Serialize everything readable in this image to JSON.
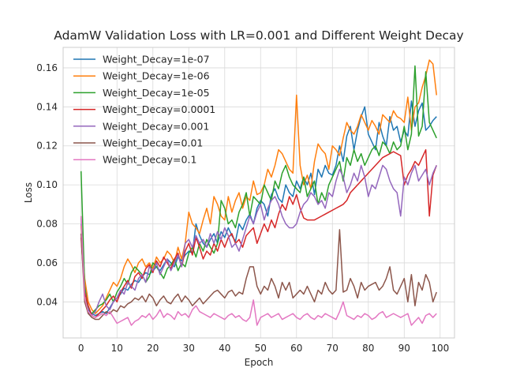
{
  "chart_data": {
    "type": "line",
    "title": "AdamW Validation Loss with LR=0.001 and Different Weight Decay",
    "xlabel": "Epoch",
    "ylabel": "Loss",
    "xlim": [
      -5,
      104
    ],
    "ylim": [
      0.0215,
      0.1705
    ],
    "xticks": [
      0,
      10,
      20,
      30,
      40,
      50,
      60,
      70,
      80,
      90,
      100
    ],
    "yticks": [
      0.04,
      0.06,
      0.08,
      0.1,
      0.12,
      0.14,
      0.16
    ],
    "grid": true,
    "legend_position": "upper-left",
    "x": [
      0,
      1,
      2,
      3,
      4,
      5,
      6,
      7,
      8,
      9,
      10,
      11,
      12,
      13,
      14,
      15,
      16,
      17,
      18,
      19,
      20,
      21,
      22,
      23,
      24,
      25,
      26,
      27,
      28,
      29,
      30,
      31,
      32,
      33,
      34,
      35,
      36,
      37,
      38,
      39,
      40,
      41,
      42,
      43,
      44,
      45,
      46,
      47,
      48,
      49,
      50,
      51,
      52,
      53,
      54,
      55,
      56,
      57,
      58,
      59,
      60,
      61,
      62,
      63,
      64,
      65,
      66,
      67,
      68,
      69,
      70,
      71,
      72,
      73,
      74,
      75,
      76,
      77,
      78,
      79,
      80,
      81,
      82,
      83,
      84,
      85,
      86,
      87,
      88,
      89,
      90,
      91,
      92,
      93,
      94,
      95,
      96,
      97,
      98,
      99
    ],
    "series": [
      {
        "name": "Weight_Decay=1e-07",
        "color": "#1f77b4",
        "values": [
          0.08,
          0.05,
          0.036,
          0.034,
          0.033,
          0.034,
          0.035,
          0.034,
          0.037,
          0.04,
          0.042,
          0.044,
          0.047,
          0.046,
          0.049,
          0.051,
          0.05,
          0.053,
          0.055,
          0.054,
          0.056,
          0.058,
          0.056,
          0.059,
          0.062,
          0.06,
          0.058,
          0.063,
          0.061,
          0.064,
          0.066,
          0.065,
          0.08,
          0.074,
          0.07,
          0.068,
          0.072,
          0.075,
          0.07,
          0.076,
          0.073,
          0.078,
          0.074,
          0.071,
          0.08,
          0.077,
          0.082,
          0.085,
          0.08,
          0.088,
          0.092,
          0.09,
          0.084,
          0.095,
          0.098,
          0.093,
          0.091,
          0.1,
          0.096,
          0.094,
          0.102,
          0.098,
          0.104,
          0.1,
          0.106,
          0.095,
          0.108,
          0.104,
          0.11,
          0.106,
          0.105,
          0.11,
          0.12,
          0.112,
          0.125,
          0.13,
          0.118,
          0.128,
          0.135,
          0.14,
          0.126,
          0.122,
          0.118,
          0.132,
          0.125,
          0.12,
          0.135,
          0.128,
          0.13,
          0.122,
          0.128,
          0.125,
          0.143,
          0.13,
          0.138,
          0.142,
          0.128,
          0.13,
          0.133,
          0.135
        ]
      },
      {
        "name": "Weight_Decay=1e-06",
        "color": "#ff7f0e",
        "values": [
          0.079,
          0.052,
          0.04,
          0.036,
          0.034,
          0.036,
          0.038,
          0.042,
          0.046,
          0.05,
          0.048,
          0.052,
          0.058,
          0.062,
          0.059,
          0.055,
          0.06,
          0.062,
          0.058,
          0.06,
          0.057,
          0.063,
          0.06,
          0.062,
          0.066,
          0.064,
          0.06,
          0.068,
          0.062,
          0.07,
          0.086,
          0.08,
          0.078,
          0.075,
          0.082,
          0.088,
          0.08,
          0.094,
          0.09,
          0.084,
          0.082,
          0.094,
          0.086,
          0.092,
          0.096,
          0.088,
          0.094,
          0.092,
          0.102,
          0.095,
          0.096,
          0.1,
          0.108,
          0.104,
          0.11,
          0.118,
          0.116,
          0.112,
          0.108,
          0.106,
          0.146,
          0.11,
          0.1,
          0.105,
          0.098,
          0.112,
          0.121,
          0.118,
          0.116,
          0.108,
          0.12,
          0.118,
          0.115,
          0.124,
          0.132,
          0.128,
          0.126,
          0.13,
          0.136,
          0.132,
          0.128,
          0.133,
          0.13,
          0.126,
          0.136,
          0.134,
          0.132,
          0.138,
          0.135,
          0.134,
          0.132,
          0.145,
          0.128,
          0.14,
          0.142,
          0.15,
          0.156,
          0.164,
          0.162,
          0.146
        ]
      },
      {
        "name": "Weight_Decay=1e-05",
        "color": "#2ca02c",
        "values": [
          0.107,
          0.048,
          0.034,
          0.034,
          0.036,
          0.038,
          0.039,
          0.041,
          0.044,
          0.04,
          0.045,
          0.048,
          0.052,
          0.049,
          0.055,
          0.058,
          0.056,
          0.054,
          0.05,
          0.053,
          0.06,
          0.058,
          0.055,
          0.052,
          0.057,
          0.059,
          0.062,
          0.056,
          0.06,
          0.058,
          0.065,
          0.068,
          0.063,
          0.07,
          0.066,
          0.072,
          0.068,
          0.065,
          0.07,
          0.092,
          0.088,
          0.08,
          0.082,
          0.078,
          0.086,
          0.09,
          0.096,
          0.084,
          0.094,
          0.092,
          0.09,
          0.1,
          0.096,
          0.092,
          0.102,
          0.098,
          0.106,
          0.11,
          0.104,
          0.1,
          0.098,
          0.096,
          0.104,
          0.094,
          0.098,
          0.102,
          0.09,
          0.096,
          0.092,
          0.1,
          0.104,
          0.108,
          0.112,
          0.102,
          0.114,
          0.11,
          0.118,
          0.112,
          0.116,
          0.11,
          0.114,
          0.118,
          0.12,
          0.115,
          0.122,
          0.12,
          0.116,
          0.122,
          0.118,
          0.12,
          0.13,
          0.118,
          0.126,
          0.161,
          0.125,
          0.13,
          0.158,
          0.132,
          0.128,
          0.124
        ]
      },
      {
        "name": "Weight_Decay=0.0001",
        "color": "#d62728",
        "values": [
          0.073,
          0.045,
          0.038,
          0.033,
          0.032,
          0.034,
          0.036,
          0.038,
          0.041,
          0.043,
          0.04,
          0.045,
          0.048,
          0.051,
          0.047,
          0.053,
          0.055,
          0.052,
          0.057,
          0.059,
          0.055,
          0.061,
          0.058,
          0.063,
          0.06,
          0.057,
          0.062,
          0.065,
          0.058,
          0.066,
          0.07,
          0.064,
          0.073,
          0.068,
          0.062,
          0.066,
          0.064,
          0.07,
          0.066,
          0.072,
          0.068,
          0.073,
          0.075,
          0.07,
          0.072,
          0.068,
          0.074,
          0.076,
          0.078,
          0.07,
          0.075,
          0.08,
          0.076,
          0.082,
          0.078,
          0.085,
          0.09,
          0.087,
          0.094,
          0.09,
          0.095,
          0.088,
          0.083,
          0.082,
          0.082,
          0.082,
          0.083,
          0.084,
          0.085,
          0.086,
          0.087,
          0.088,
          0.089,
          0.09,
          0.092,
          0.096,
          0.098,
          0.1,
          0.102,
          0.104,
          0.106,
          0.108,
          0.11,
          0.112,
          0.114,
          0.115,
          0.116,
          0.117,
          0.116,
          0.115,
          0.1,
          0.105,
          0.108,
          0.112,
          0.11,
          0.114,
          0.118,
          0.084,
          0.105,
          0.11
        ]
      },
      {
        "name": "Weight_Decay=0.001",
        "color": "#9467bd",
        "values": [
          0.083,
          0.042,
          0.034,
          0.033,
          0.035,
          0.04,
          0.044,
          0.038,
          0.036,
          0.04,
          0.042,
          0.046,
          0.044,
          0.05,
          0.048,
          0.046,
          0.052,
          0.054,
          0.05,
          0.058,
          0.056,
          0.06,
          0.054,
          0.058,
          0.062,
          0.056,
          0.06,
          0.064,
          0.058,
          0.07,
          0.072,
          0.068,
          0.074,
          0.07,
          0.072,
          0.068,
          0.075,
          0.07,
          0.076,
          0.072,
          0.078,
          0.074,
          0.068,
          0.07,
          0.066,
          0.072,
          0.078,
          0.084,
          0.08,
          0.086,
          0.09,
          0.082,
          0.088,
          0.092,
          0.094,
          0.09,
          0.084,
          0.08,
          0.078,
          0.078,
          0.08,
          0.086,
          0.09,
          0.092,
          0.096,
          0.094,
          0.09,
          0.092,
          0.088,
          0.096,
          0.094,
          0.102,
          0.108,
          0.104,
          0.096,
          0.1,
          0.106,
          0.102,
          0.11,
          0.104,
          0.094,
          0.1,
          0.098,
          0.104,
          0.11,
          0.108,
          0.102,
          0.098,
          0.096,
          0.084,
          0.104,
          0.1,
          0.106,
          0.11,
          0.102,
          0.105,
          0.108,
          0.1,
          0.106,
          0.11
        ]
      },
      {
        "name": "Weight_Decay=0.01",
        "color": "#8c564b",
        "values": [
          0.075,
          0.04,
          0.034,
          0.032,
          0.031,
          0.031,
          0.033,
          0.035,
          0.034,
          0.036,
          0.035,
          0.038,
          0.037,
          0.039,
          0.04,
          0.042,
          0.041,
          0.043,
          0.04,
          0.044,
          0.042,
          0.038,
          0.041,
          0.043,
          0.04,
          0.039,
          0.042,
          0.044,
          0.04,
          0.043,
          0.041,
          0.038,
          0.04,
          0.042,
          0.039,
          0.041,
          0.043,
          0.045,
          0.046,
          0.044,
          0.042,
          0.045,
          0.046,
          0.043,
          0.045,
          0.044,
          0.052,
          0.058,
          0.058,
          0.048,
          0.044,
          0.048,
          0.046,
          0.052,
          0.048,
          0.042,
          0.05,
          0.046,
          0.05,
          0.042,
          0.044,
          0.046,
          0.044,
          0.048,
          0.044,
          0.04,
          0.046,
          0.044,
          0.05,
          0.046,
          0.044,
          0.046,
          0.077,
          0.045,
          0.046,
          0.052,
          0.048,
          0.042,
          0.05,
          0.046,
          0.048,
          0.049,
          0.05,
          0.046,
          0.048,
          0.052,
          0.058,
          0.046,
          0.044,
          0.048,
          0.052,
          0.04,
          0.054,
          0.038,
          0.05,
          0.046,
          0.054,
          0.05,
          0.04,
          0.045
        ]
      },
      {
        "name": "Weight_Decay=0.1",
        "color": "#e377c2",
        "values": [
          0.084,
          0.042,
          0.035,
          0.033,
          0.032,
          0.033,
          0.034,
          0.033,
          0.035,
          0.032,
          0.029,
          0.03,
          0.031,
          0.032,
          0.028,
          0.03,
          0.031,
          0.033,
          0.032,
          0.034,
          0.031,
          0.033,
          0.036,
          0.032,
          0.034,
          0.033,
          0.031,
          0.035,
          0.033,
          0.034,
          0.032,
          0.036,
          0.038,
          0.035,
          0.034,
          0.033,
          0.032,
          0.034,
          0.033,
          0.032,
          0.031,
          0.033,
          0.034,
          0.032,
          0.033,
          0.031,
          0.03,
          0.032,
          0.041,
          0.028,
          0.032,
          0.033,
          0.034,
          0.032,
          0.033,
          0.034,
          0.031,
          0.032,
          0.033,
          0.034,
          0.032,
          0.031,
          0.033,
          0.034,
          0.032,
          0.031,
          0.033,
          0.032,
          0.034,
          0.033,
          0.032,
          0.031,
          0.035,
          0.04,
          0.033,
          0.032,
          0.031,
          0.033,
          0.032,
          0.034,
          0.033,
          0.031,
          0.032,
          0.034,
          0.035,
          0.032,
          0.033,
          0.034,
          0.033,
          0.032,
          0.033,
          0.034,
          0.028,
          0.03,
          0.032,
          0.029,
          0.033,
          0.034,
          0.032,
          0.034
        ]
      }
    ]
  }
}
